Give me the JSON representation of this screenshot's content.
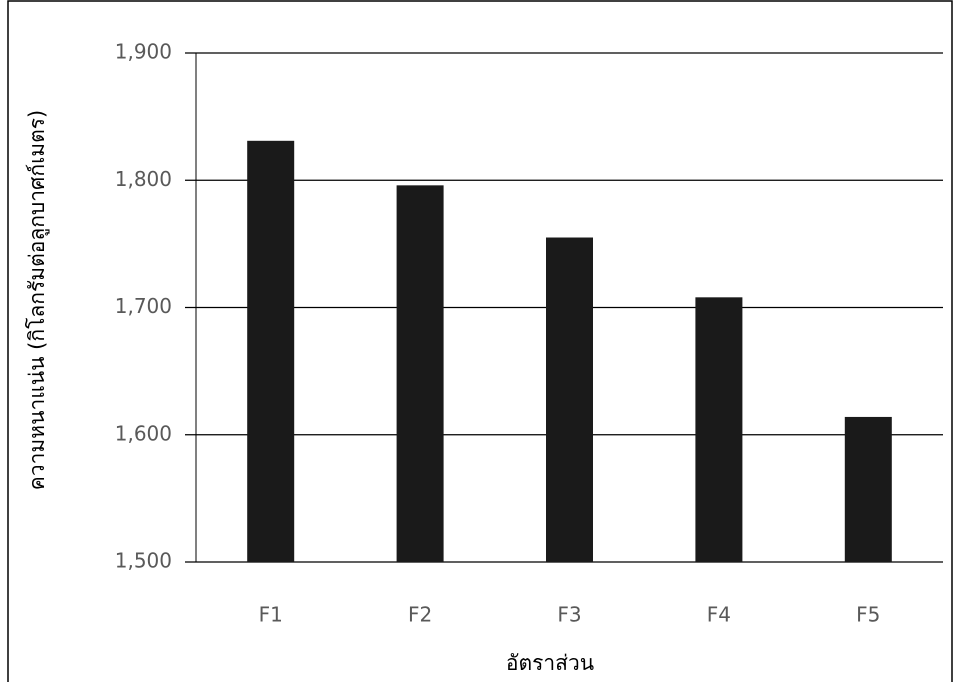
{
  "chart_data": {
    "type": "bar",
    "x_label": "อัตราส่วน",
    "y_label": "ความหนาแน่น (กิโลกรัมต่อลูกบาศก์เมตร)",
    "categories": [
      "F1",
      "F2",
      "F3",
      "F4",
      "F5"
    ],
    "values": [
      1831,
      1796,
      1755,
      1708,
      1614
    ],
    "color": "#1a1a1a",
    "ylim": [
      1500,
      1900
    ],
    "yticks": [
      {
        "value": 1500,
        "label": "1,500"
      },
      {
        "value": 1600,
        "label": "1,600"
      },
      {
        "value": 1700,
        "label": "1,700"
      },
      {
        "value": 1800,
        "label": "1,800"
      },
      {
        "value": 1900,
        "label": "1,900"
      }
    ],
    "grid": true
  }
}
